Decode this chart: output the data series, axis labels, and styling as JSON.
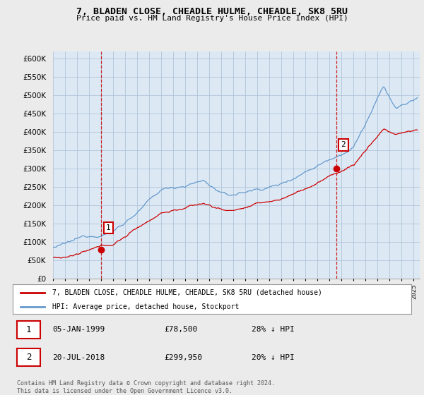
{
  "title": "7, BLADEN CLOSE, CHEADLE HULME, CHEADLE, SK8 5RU",
  "subtitle": "Price paid vs. HM Land Registry's House Price Index (HPI)",
  "legend_line1": "7, BLADEN CLOSE, CHEADLE HULME, CHEADLE, SK8 5RU (detached house)",
  "legend_line2": "HPI: Average price, detached house, Stockport",
  "table_row1_date": "05-JAN-1999",
  "table_row1_price": "£78,500",
  "table_row1_hpi": "28% ↓ HPI",
  "table_row2_date": "20-JUL-2018",
  "table_row2_price": "£299,950",
  "table_row2_hpi": "20% ↓ HPI",
  "footnote": "Contains HM Land Registry data © Crown copyright and database right 2024.\nThis data is licensed under the Open Government Licence v3.0.",
  "ylim": [
    0,
    620000
  ],
  "yticks": [
    0,
    50000,
    100000,
    150000,
    200000,
    250000,
    300000,
    350000,
    400000,
    450000,
    500000,
    550000,
    600000
  ],
  "price_color": "#cc0000",
  "hpi_color": "#6699cc",
  "vline_color": "#cc0000",
  "bg_color": "#ebebeb",
  "plot_bg_color": "#dce9f5",
  "grid_color": "#b0c4d8"
}
